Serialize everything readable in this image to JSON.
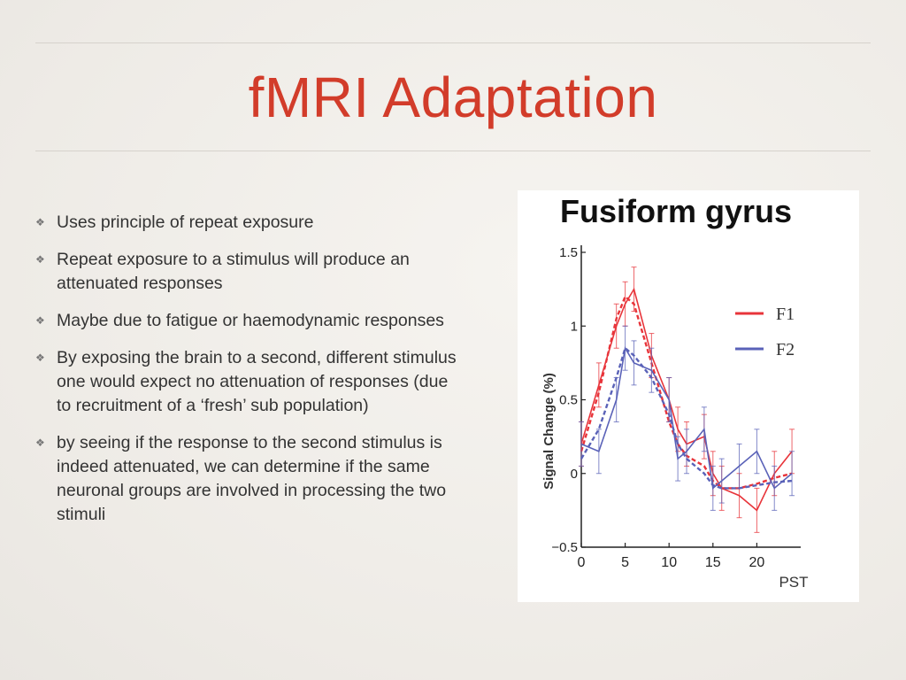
{
  "slide": {
    "title": "fMRI Adaptation",
    "bullets": [
      "Uses principle of repeat exposure",
      "Repeat exposure to a stimulus will produce an attenuated responses",
      "Maybe due to fatigue or haemodynamic responses",
      "By exposing the brain to a second, different stimulus one would expect no attenuation of responses (due to recruitment of a ‘fresh’ sub population)",
      "by seeing if the response to the second stimulus is indeed attenuated, we can determine if the same neuronal groups are involved in processing the two stimuli"
    ],
    "bullet_icon": "diamond-dots-icon"
  },
  "chart_data": {
    "type": "line",
    "title": "Fusiform gyrus",
    "xlabel": "PST",
    "ylabel": "Signal Change (%)",
    "xlim": [
      0,
      25
    ],
    "ylim": [
      -0.5,
      1.5
    ],
    "xticks": [
      "0",
      "5",
      "10",
      "15",
      "20"
    ],
    "yticks": [
      "−0.5",
      "0",
      "0.5",
      "1",
      "1.5"
    ],
    "legend_position": "right",
    "colors": {
      "F1": "#e8343a",
      "F2": "#5a62b8"
    },
    "x": [
      0,
      2,
      4,
      5,
      6,
      8,
      10,
      11,
      12,
      14,
      15,
      16,
      18,
      20,
      22,
      24
    ],
    "series": [
      {
        "name": "F1",
        "values": [
          0.2,
          0.6,
          1.0,
          1.15,
          1.25,
          0.8,
          0.5,
          0.3,
          0.2,
          0.25,
          0.0,
          -0.1,
          -0.15,
          -0.25,
          0.0,
          0.15
        ],
        "fit": [
          0.15,
          0.55,
          1.05,
          1.2,
          1.15,
          0.75,
          0.35,
          0.2,
          0.12,
          0.05,
          -0.05,
          -0.1,
          -0.1,
          -0.07,
          -0.03,
          0.0
        ],
        "errors": [
          0.15,
          0.15,
          0.15,
          0.15,
          0.15,
          0.15,
          0.15,
          0.15,
          0.15,
          0.15,
          0.15,
          0.15,
          0.15,
          0.15,
          0.15,
          0.15
        ]
      },
      {
        "name": "F2",
        "values": [
          0.2,
          0.15,
          0.5,
          0.85,
          0.75,
          0.7,
          0.5,
          0.1,
          0.15,
          0.3,
          -0.1,
          -0.05,
          0.05,
          0.15,
          -0.1,
          0.0
        ],
        "fit": [
          0.1,
          0.3,
          0.65,
          0.85,
          0.8,
          0.65,
          0.4,
          0.2,
          0.1,
          0.0,
          -0.08,
          -0.1,
          -0.1,
          -0.08,
          -0.06,
          -0.05
        ],
        "errors": [
          0.15,
          0.15,
          0.15,
          0.15,
          0.15,
          0.15,
          0.15,
          0.15,
          0.15,
          0.15,
          0.15,
          0.15,
          0.15,
          0.15,
          0.15,
          0.15
        ]
      }
    ]
  }
}
